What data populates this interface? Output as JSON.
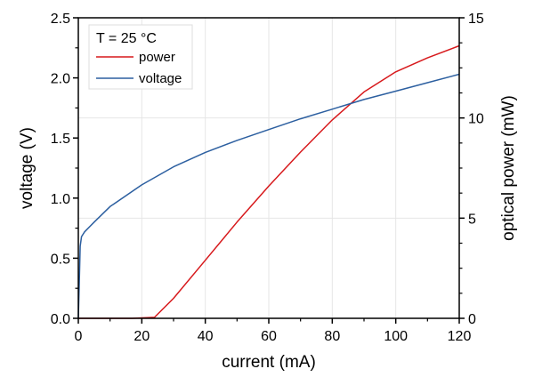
{
  "chart_data": {
    "type": "line",
    "xlabel": "current (mA)",
    "ylabel": "voltage (V)",
    "y2label": "optical power (mW)",
    "xlim": [
      0,
      120
    ],
    "ylim": [
      0,
      2.5
    ],
    "y2lim": [
      0,
      15
    ],
    "xticks": [
      "0",
      "20",
      "40",
      "60",
      "80",
      "100",
      "120"
    ],
    "yticks": [
      "0.0",
      "0.5",
      "1.0",
      "1.5",
      "2.0",
      "2.5"
    ],
    "y2ticks": [
      "0",
      "5",
      "10",
      "15"
    ],
    "grid": true,
    "legend": {
      "title": "T = 25 °C",
      "placement": "top-left"
    },
    "series": [
      {
        "name": "power",
        "axis": "right",
        "color": "#d7191c",
        "x": [
          0,
          17,
          24,
          30,
          40,
          50,
          60,
          70,
          80,
          90,
          100,
          110,
          120
        ],
        "y": [
          0,
          0,
          0.05,
          1.0,
          2.9,
          4.8,
          6.6,
          8.3,
          9.9,
          11.3,
          12.3,
          13.0,
          13.6
        ]
      },
      {
        "name": "voltage",
        "axis": "left",
        "color": "#2c5fa0",
        "x": [
          0,
          0.3,
          0.6,
          1,
          2,
          5,
          10,
          20,
          30,
          40,
          50,
          60,
          70,
          80,
          90,
          100,
          110,
          120
        ],
        "y": [
          0,
          0.3,
          0.6,
          0.68,
          0.72,
          0.8,
          0.93,
          1.11,
          1.26,
          1.38,
          1.48,
          1.57,
          1.66,
          1.74,
          1.82,
          1.89,
          1.96,
          2.03
        ]
      }
    ]
  }
}
